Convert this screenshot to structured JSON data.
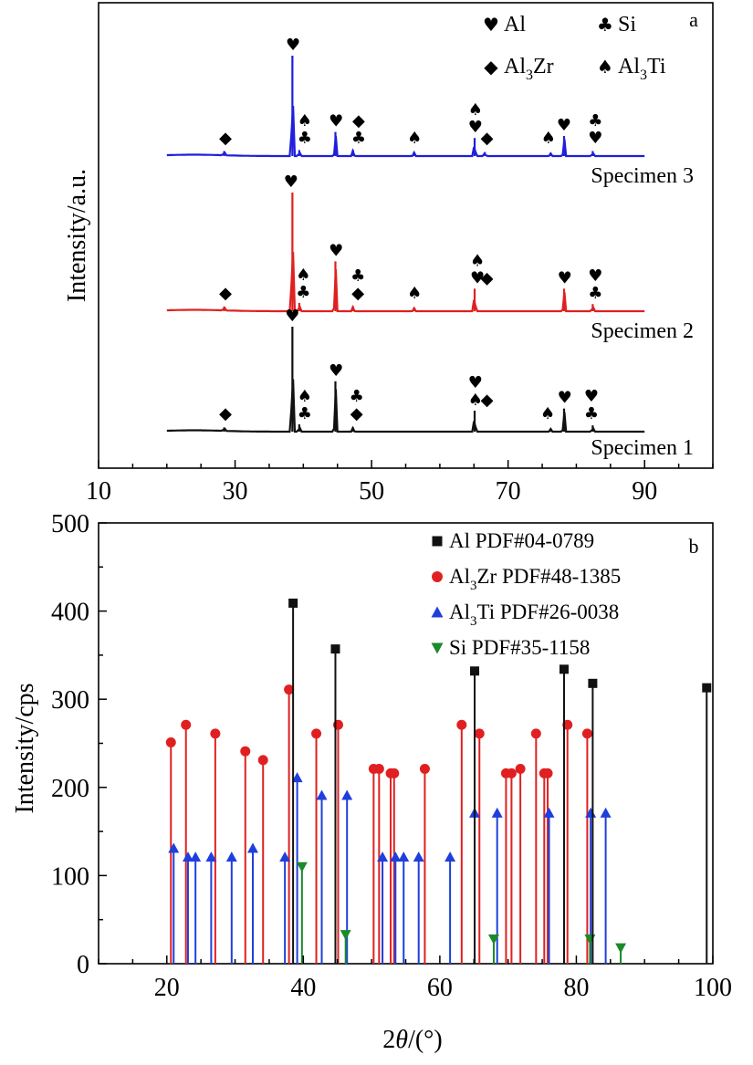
{
  "symbols": {
    "Al": "♥",
    "Si": "♣",
    "Al3Zr": "◆",
    "Al3Ti": "♠"
  },
  "chart_data": [
    {
      "panel": "a",
      "type": "line",
      "ylabel": "Intensity/a.u.",
      "xlim": [
        10,
        100
      ],
      "xticks": [
        10,
        30,
        50,
        70,
        90
      ],
      "legend": {
        "position": "top-right",
        "entries": [
          {
            "symbol": "♥",
            "label": "Al",
            "main": "Al",
            "sub": ""
          },
          {
            "symbol": "♣",
            "label": "Si",
            "main": "Si",
            "sub": ""
          },
          {
            "symbol": "◆",
            "label": "Al3Zr",
            "main": "Al",
            "sub": "3",
            "rest": "Zr"
          },
          {
            "symbol": "♠",
            "label": "Al3Ti",
            "main": "Al",
            "sub": "3",
            "rest": "Ti"
          }
        ]
      },
      "series": [
        {
          "name": "Specimen 3",
          "color": "#1f1fdd",
          "x_start": 20,
          "x_end": 90,
          "peaks": [
            {
              "x": 28.4,
              "h": 5
            },
            {
              "x": 38.4,
              "h": 100
            },
            {
              "x": 39.4,
              "h": 6
            },
            {
              "x": 44.7,
              "h": 24
            },
            {
              "x": 47.3,
              "h": 6
            },
            {
              "x": 56.2,
              "h": 4
            },
            {
              "x": 65.1,
              "h": 18
            },
            {
              "x": 66.6,
              "h": 4
            },
            {
              "x": 76.2,
              "h": 3
            },
            {
              "x": 78.2,
              "h": 20
            },
            {
              "x": 82.4,
              "h": 5
            }
          ],
          "markers": [
            {
              "x": 28.6,
              "symbols": [
                "◆"
              ]
            },
            {
              "x": 38.5,
              "symbols": [
                "♥"
              ]
            },
            {
              "x": 40.2,
              "symbols": [
                "♠",
                "♣"
              ]
            },
            {
              "x": 44.8,
              "symbols": [
                "♥"
              ]
            },
            {
              "x": 48.1,
              "symbols": [
                "◆",
                "♣"
              ]
            },
            {
              "x": 56.3,
              "symbols": [
                "♠"
              ]
            },
            {
              "x": 65.2,
              "symbols": [
                "♠",
                "♥"
              ]
            },
            {
              "x": 66.9,
              "symbols": [
                "◆"
              ]
            },
            {
              "x": 75.9,
              "symbols": [
                "♠"
              ]
            },
            {
              "x": 78.2,
              "symbols": [
                "♥"
              ]
            },
            {
              "x": 82.8,
              "symbols": [
                "♣",
                "♥"
              ]
            }
          ]
        },
        {
          "name": "Specimen 2",
          "color": "#e02020",
          "x_start": 20,
          "x_end": 90,
          "peaks": [
            {
              "x": 28.4,
              "h": 4
            },
            {
              "x": 38.4,
              "h": 100
            },
            {
              "x": 39.4,
              "h": 7
            },
            {
              "x": 44.7,
              "h": 42
            },
            {
              "x": 47.3,
              "h": 4
            },
            {
              "x": 56.2,
              "h": 3
            },
            {
              "x": 65.1,
              "h": 19
            },
            {
              "x": 78.2,
              "h": 19
            },
            {
              "x": 82.4,
              "h": 6
            }
          ],
          "markers": [
            {
              "x": 28.6,
              "symbols": [
                "◆"
              ]
            },
            {
              "x": 38.2,
              "symbols": [
                "♥"
              ]
            },
            {
              "x": 40.0,
              "symbols": [
                "♠",
                "♣"
              ]
            },
            {
              "x": 44.8,
              "symbols": [
                "♥"
              ]
            },
            {
              "x": 48.0,
              "symbols": [
                "♣",
                "◆"
              ]
            },
            {
              "x": 56.3,
              "symbols": [
                "♠"
              ]
            },
            {
              "x": 65.5,
              "symbols": [
                "♠",
                "♥"
              ]
            },
            {
              "x": 66.9,
              "symbols": [
                "◆"
              ]
            },
            {
              "x": 78.3,
              "symbols": [
                "♥"
              ]
            },
            {
              "x": 82.8,
              "symbols": [
                "♥",
                "♣"
              ]
            }
          ]
        },
        {
          "name": "Specimen 1",
          "color": "#111111",
          "x_start": 20,
          "x_end": 90,
          "peaks": [
            {
              "x": 28.4,
              "h": 4
            },
            {
              "x": 38.4,
              "h": 100
            },
            {
              "x": 39.4,
              "h": 7
            },
            {
              "x": 44.7,
              "h": 48
            },
            {
              "x": 47.3,
              "h": 4
            },
            {
              "x": 65.1,
              "h": 20
            },
            {
              "x": 76.2,
              "h": 3
            },
            {
              "x": 78.2,
              "h": 22
            },
            {
              "x": 82.4,
              "h": 6
            }
          ],
          "markers": [
            {
              "x": 28.6,
              "symbols": [
                "◆"
              ]
            },
            {
              "x": 38.4,
              "symbols": [
                "♥"
              ]
            },
            {
              "x": 40.2,
              "symbols": [
                "♠",
                "♣"
              ]
            },
            {
              "x": 44.8,
              "symbols": [
                "♥"
              ]
            },
            {
              "x": 47.8,
              "symbols": [
                "♣",
                "◆"
              ]
            },
            {
              "x": 65.2,
              "symbols": [
                "♥",
                "♠"
              ]
            },
            {
              "x": 66.9,
              "symbols": [
                "◆"
              ]
            },
            {
              "x": 75.8,
              "symbols": [
                "♠"
              ]
            },
            {
              "x": 78.3,
              "symbols": [
                "♥"
              ]
            },
            {
              "x": 82.2,
              "symbols": [
                "♥",
                "♣"
              ]
            }
          ]
        }
      ]
    },
    {
      "panel": "b",
      "type": "scatter",
      "xlabel_italic": "θ",
      "xlabel_pre": "2",
      "xlabel_post": "/(°)",
      "xlabel": "2θ/(°)",
      "ylabel": "Intensity/cps",
      "xlim": [
        10,
        100
      ],
      "ylim": [
        0,
        500
      ],
      "xticks": [
        20,
        40,
        60,
        80,
        100
      ],
      "yticks": [
        0,
        100,
        200,
        300,
        400,
        500
      ],
      "legend_position": "top-right",
      "series": [
        {
          "name": "Al PDF#04-0789",
          "name_main": "Al PDF#04-0789",
          "name_sub": "",
          "name_rest": "",
          "color": "#111111",
          "marker": "square",
          "points": [
            [
              38.5,
              409
            ],
            [
              44.7,
              357
            ],
            [
              65.1,
              332
            ],
            [
              78.2,
              334
            ],
            [
              82.4,
              318
            ],
            [
              99.1,
              313
            ]
          ]
        },
        {
          "name": "Al3Zr PDF#48-1385",
          "name_main": "Al",
          "name_sub": "3",
          "name_rest": "Zr PDF#48-1385",
          "color": "#e02020",
          "marker": "circle",
          "points": [
            [
              20.6,
              251
            ],
            [
              22.8,
              271
            ],
            [
              27.1,
              261
            ],
            [
              31.5,
              241
            ],
            [
              34.1,
              231
            ],
            [
              37.9,
              311
            ],
            [
              41.9,
              261
            ],
            [
              45.1,
              271
            ],
            [
              50.3,
              221
            ],
            [
              51.1,
              221
            ],
            [
              52.8,
              216
            ],
            [
              53.3,
              216
            ],
            [
              57.8,
              221
            ],
            [
              63.2,
              271
            ],
            [
              65.8,
              261
            ],
            [
              69.7,
              216
            ],
            [
              70.5,
              216
            ],
            [
              71.8,
              221
            ],
            [
              74.1,
              261
            ],
            [
              75.3,
              216
            ],
            [
              75.8,
              216
            ],
            [
              78.7,
              271
            ],
            [
              81.6,
              261
            ]
          ]
        },
        {
          "name": "Al3Ti PDF#26-0038",
          "name_main": "Al",
          "name_sub": "3",
          "name_rest": "Ti PDF#26-0038",
          "color": "#1f3fdd",
          "marker": "triangle-up",
          "points": [
            [
              21.0,
              131
            ],
            [
              23.1,
              121
            ],
            [
              24.2,
              121
            ],
            [
              26.5,
              121
            ],
            [
              29.5,
              121
            ],
            [
              32.6,
              131
            ],
            [
              37.3,
              121
            ],
            [
              39.1,
              211
            ],
            [
              42.7,
              191
            ],
            [
              46.4,
              191
            ],
            [
              51.6,
              121
            ],
            [
              53.5,
              121
            ],
            [
              54.7,
              121
            ],
            [
              56.9,
              121
            ],
            [
              61.5,
              121
            ],
            [
              65.1,
              171
            ],
            [
              68.4,
              171
            ],
            [
              76.0,
              171
            ],
            [
              82.1,
              171
            ],
            [
              84.3,
              171
            ]
          ]
        },
        {
          "name": "Si PDF#35-1158",
          "name_main": "Si PDF#35-1158",
          "name_sub": "",
          "name_rest": "",
          "color": "#1a8a2a",
          "marker": "triangle-down",
          "points": [
            [
              39.8,
              110
            ],
            [
              46.2,
              33
            ],
            [
              67.9,
              28
            ],
            [
              82.0,
              28
            ],
            [
              86.5,
              18
            ]
          ]
        }
      ]
    }
  ],
  "panel_labels": {
    "a": "a",
    "b": "b"
  }
}
